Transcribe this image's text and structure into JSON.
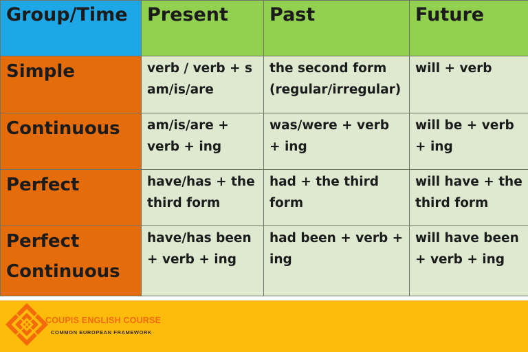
{
  "table": {
    "corner_label": "Group/Time",
    "columns": [
      "Present",
      "Past",
      "Future"
    ],
    "rows": [
      {
        "label": [
          "Simple"
        ],
        "cells": [
          [
            "verb / verb + s",
            "am/is/are"
          ],
          [
            "the second form",
            "(regular/irregular)"
          ],
          [
            "will + verb"
          ]
        ]
      },
      {
        "label": [
          "Continuous"
        ],
        "cells": [
          [
            "am/is/are +",
            "verb + ing"
          ],
          [
            "was/were + verb",
            "+ ing"
          ],
          [
            "will be + verb",
            "+ ing"
          ]
        ]
      },
      {
        "label": [
          "Perfect"
        ],
        "cells": [
          [
            "have/has + the",
            "third form"
          ],
          [
            "had + the third",
            "form"
          ],
          [
            "will have + the",
            "third form"
          ]
        ]
      },
      {
        "label": [
          "Perfect",
          "Continuous"
        ],
        "cells": [
          [
            "have/has been",
            "+ verb + ing"
          ],
          [
            "had been + verb +",
            "ing"
          ],
          [
            "will have been",
            "+ verb + ing"
          ]
        ]
      }
    ]
  },
  "footer": {
    "brand_name": "COUPIS ENGLISH COURSE",
    "tagline": "COMMON EUROPEAN FRAMEWORK",
    "logo_icon": "diamond-stack-logo-icon"
  },
  "colors": {
    "corner_header": "#1ea7e6",
    "column_header": "#92d050",
    "row_label": "#e46c0a",
    "body_cell": "#dfe9cf",
    "footer_bar": "#fdbb0b",
    "brand_text": "#f26a0a"
  }
}
